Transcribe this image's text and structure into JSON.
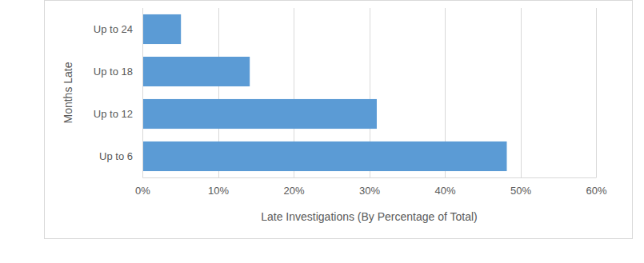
{
  "chart_data": {
    "type": "bar",
    "orientation": "horizontal",
    "categories": [
      "Up to 24",
      "Up to 18",
      "Up to 12",
      "Up to 6"
    ],
    "values": [
      5.1,
      14.2,
      31.0,
      48.2
    ],
    "color": "#5b9bd5",
    "x_label": "Late Investigations (By Percentage of Total)",
    "y_label": "Months Late",
    "xlim": [
      0,
      60
    ],
    "xticks": [
      {
        "value": 0,
        "label": "0%"
      },
      {
        "value": 10,
        "label": "10%"
      },
      {
        "value": 20,
        "label": "20%"
      },
      {
        "value": 30,
        "label": "30%"
      },
      {
        "value": 40,
        "label": "40%"
      },
      {
        "value": 50,
        "label": "50%"
      },
      {
        "value": 60,
        "label": "60%"
      }
    ],
    "grid": true
  }
}
